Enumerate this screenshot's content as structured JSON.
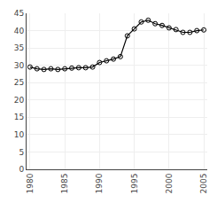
{
  "chart_data": {
    "type": "line",
    "x": [
      1980,
      1981,
      1982,
      1983,
      1984,
      1985,
      1986,
      1987,
      1988,
      1989,
      1990,
      1991,
      1992,
      1993,
      1994,
      1995,
      1996,
      1997,
      1998,
      1999,
      2000,
      2001,
      2002,
      2003,
      2004,
      2005
    ],
    "values": [
      29.5,
      29.0,
      28.8,
      29.0,
      28.8,
      29.0,
      29.2,
      29.3,
      29.3,
      29.5,
      30.8,
      31.3,
      31.8,
      32.5,
      38.5,
      40.5,
      42.5,
      43.0,
      42.0,
      41.5,
      40.8,
      40.3,
      39.5,
      39.5,
      40.0,
      40.2
    ],
    "xlim": [
      1979.5,
      2005.5
    ],
    "ylim": [
      0,
      45
    ],
    "xticks": [
      1980,
      1985,
      1990,
      1995,
      2000,
      2005
    ],
    "yticks": [
      0,
      5,
      10,
      15,
      20,
      25,
      30,
      35,
      40,
      45
    ],
    "color": "#000000",
    "marker": "circle-open",
    "grid": true
  }
}
